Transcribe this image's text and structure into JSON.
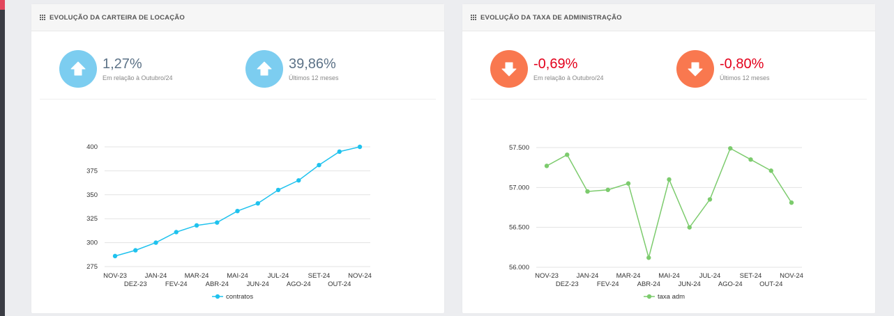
{
  "colors": {
    "up_circle": "#7ccdf0",
    "down_circle": "#f9784f",
    "up_text": "#5c7287",
    "down_text": "#e3001b",
    "series_left": "#1fc2ee",
    "series_right": "#7ccb6d"
  },
  "panels": {
    "left": {
      "title": "EVOLUÇÃO DA CARTEIRA DE LOCAÇÃO",
      "kpi1": {
        "value": "1,27%",
        "sub": "Em relação à Outubro/24",
        "direction": "up",
        "icon": "arrow-up-icon"
      },
      "kpi2": {
        "value": "39,86%",
        "sub": "Últimos 12 meses",
        "direction": "up",
        "icon": "arrow-up-icon"
      }
    },
    "right": {
      "title": "EVOLUÇÃO DA TAXA DE ADMINISTRAÇÃO",
      "kpi1": {
        "value": "-0,69%",
        "sub": "Em relação à Outubro/24",
        "direction": "down",
        "icon": "arrow-down-icon"
      },
      "kpi2": {
        "value": "-0,80%",
        "sub": "Últimos 12 meses",
        "direction": "down",
        "icon": "arrow-down-icon"
      }
    }
  },
  "chart_data": [
    {
      "type": "line",
      "categories": [
        "NOV-23",
        "DEZ-23",
        "JAN-24",
        "FEV-24",
        "MAR-24",
        "ABR-24",
        "MAI-24",
        "JUN-24",
        "JUL-24",
        "AGO-24",
        "SET-24",
        "OUT-24",
        "NOV-24"
      ],
      "series": [
        {
          "name": "contratos",
          "values": [
            286,
            292,
            300,
            311,
            318,
            321,
            333,
            341,
            355,
            365,
            381,
            395,
            400
          ]
        }
      ],
      "yticks": [
        "275",
        "300",
        "325",
        "350",
        "375",
        "400"
      ],
      "ylim": [
        275,
        400
      ],
      "grid": true,
      "legend": "bottom"
    },
    {
      "type": "line",
      "categories": [
        "NOV-23",
        "DEZ-23",
        "JAN-24",
        "FEV-24",
        "MAR-24",
        "ABR-24",
        "MAI-24",
        "JUN-24",
        "JUL-24",
        "AGO-24",
        "SET-24",
        "OUT-24",
        "NOV-24"
      ],
      "series": [
        {
          "name": "taxa adm",
          "values": [
            57270,
            57410,
            56950,
            56970,
            57050,
            56120,
            57100,
            56500,
            56850,
            57490,
            57350,
            57210,
            56810
          ]
        }
      ],
      "yticks": [
        "56.000",
        "56.500",
        "57.000",
        "57.500"
      ],
      "ylim": [
        56000,
        57500
      ],
      "grid": true,
      "legend": "bottom"
    }
  ]
}
